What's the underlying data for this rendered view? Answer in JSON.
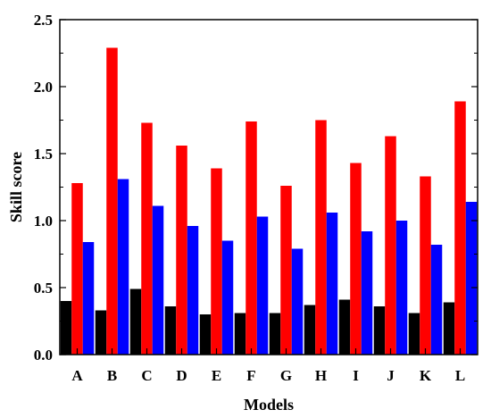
{
  "chart_data": {
    "type": "bar",
    "title": "",
    "xlabel": "Models",
    "ylabel": "Skill score",
    "categories": [
      "A",
      "B",
      "C",
      "D",
      "E",
      "F",
      "G",
      "H",
      "I",
      "J",
      "K",
      "L"
    ],
    "ylim": [
      0,
      2.5
    ],
    "yticks": [
      "0.0",
      "0.5",
      "1.0",
      "1.5",
      "2.0",
      "2.5"
    ],
    "grid": false,
    "legend": "none",
    "series": [
      {
        "color": "#000000",
        "values": [
          0.4,
          0.33,
          0.49,
          0.36,
          0.3,
          0.31,
          0.31,
          0.37,
          0.41,
          0.36,
          0.31,
          0.39
        ]
      },
      {
        "color": "#ff0000",
        "values": [
          1.28,
          2.29,
          1.73,
          1.56,
          1.39,
          1.74,
          1.26,
          1.75,
          1.43,
          1.63,
          1.33,
          1.89
        ]
      },
      {
        "color": "#0000ff",
        "values": [
          0.84,
          1.31,
          1.11,
          0.96,
          0.85,
          1.03,
          0.79,
          1.06,
          0.92,
          1.0,
          0.82,
          1.14
        ]
      }
    ]
  }
}
